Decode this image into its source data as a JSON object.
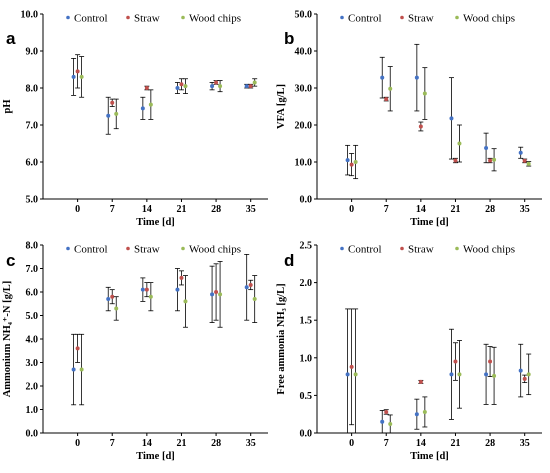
{
  "chart_data": [
    {
      "type": "scatter",
      "panel_label": "a",
      "xlabel": "Time [d]",
      "ylabel": "pH",
      "ylim": [
        5.0,
        10.0
      ],
      "yticks": [
        "5.0",
        "6.0",
        "7.0",
        "8.0",
        "9.0",
        "10.0"
      ],
      "x": [
        0,
        7,
        14,
        21,
        28,
        35
      ],
      "xticks": [
        "0",
        "7",
        "14",
        "21",
        "28",
        "35"
      ],
      "legend": "top",
      "series": [
        {
          "name": "Control",
          "color": "#4472c4",
          "values": [
            8.3,
            7.25,
            7.45,
            8.0,
            8.05,
            8.05
          ],
          "errors": [
            0.5,
            0.5,
            0.3,
            0.15,
            0.1,
            0.05
          ]
        },
        {
          "name": "Straw",
          "color": "#c0504d",
          "values": [
            8.45,
            7.6,
            8.0,
            8.1,
            8.15,
            8.05
          ],
          "errors": [
            0.45,
            0.1,
            0.05,
            0.15,
            0.05,
            0.05
          ]
        },
        {
          "name": "Wood chips",
          "color": "#9bbb59",
          "values": [
            8.3,
            7.3,
            7.55,
            8.05,
            8.05,
            8.15
          ],
          "errors": [
            0.55,
            0.4,
            0.4,
            0.2,
            0.15,
            0.1
          ]
        }
      ]
    },
    {
      "type": "scatter",
      "panel_label": "b",
      "xlabel": "Time [d]",
      "ylabel": "VFA [g/L]",
      "ylim": [
        0.0,
        50.0
      ],
      "yticks": [
        "0.0",
        "10.0",
        "20.0",
        "30.0",
        "40.0",
        "50.0"
      ],
      "x": [
        0,
        7,
        14,
        21,
        28,
        35
      ],
      "xticks": [
        "0",
        "7",
        "14",
        "21",
        "28",
        "35"
      ],
      "legend": "top",
      "series": [
        {
          "name": "Control",
          "color": "#4472c4",
          "values": [
            10.5,
            32.8,
            32.8,
            21.8,
            13.8,
            12.5
          ],
          "errors": [
            4.0,
            5.5,
            9.0,
            11.0,
            4.0,
            1.5
          ]
        },
        {
          "name": "Straw",
          "color": "#c0504d",
          "values": [
            9.3,
            27.0,
            19.6,
            10.4,
            10.4,
            10.3
          ],
          "errors": [
            3.0,
            0.5,
            1.2,
            0.6,
            0.6,
            0.5
          ]
        },
        {
          "name": "Wood chips",
          "color": "#9bbb59",
          "values": [
            10.0,
            29.8,
            28.5,
            15.0,
            10.6,
            9.5
          ],
          "errors": [
            4.5,
            6.0,
            7.0,
            5.0,
            3.0,
            0.6
          ]
        }
      ]
    },
    {
      "type": "scatter",
      "panel_label": "c",
      "xlabel": "Time [d]",
      "ylabel": "Ammonium NH₄⁺-N [g/L]",
      "ylim": [
        0.0,
        8.0
      ],
      "yticks": [
        "0.0",
        "1.0",
        "2.0",
        "3.0",
        "4.0",
        "5.0",
        "6.0",
        "7.0",
        "8.0"
      ],
      "x": [
        0,
        7,
        14,
        21,
        28,
        35
      ],
      "xticks": [
        "0",
        "7",
        "14",
        "21",
        "28",
        "35"
      ],
      "legend": "top",
      "series": [
        {
          "name": "Control",
          "color": "#4472c4",
          "values": [
            2.7,
            5.7,
            6.1,
            6.1,
            5.9,
            6.2
          ],
          "errors": [
            1.5,
            0.5,
            0.5,
            0.9,
            1.2,
            1.4
          ]
        },
        {
          "name": "Straw",
          "color": "#c0504d",
          "values": [
            3.6,
            5.8,
            6.1,
            6.6,
            6.0,
            6.3
          ],
          "errors": [
            0.6,
            0.3,
            0.3,
            0.3,
            1.2,
            0.2
          ]
        },
        {
          "name": "Wood chips",
          "color": "#9bbb59",
          "values": [
            2.7,
            5.3,
            5.8,
            5.6,
            5.9,
            5.7
          ],
          "errors": [
            1.5,
            0.5,
            0.6,
            1.1,
            1.4,
            1.0
          ]
        }
      ]
    },
    {
      "type": "scatter",
      "panel_label": "d",
      "xlabel": "Time [d]",
      "ylabel": "Free ammonia NH₃ [g/L]",
      "ylim": [
        0.0,
        2.5
      ],
      "yticks": [
        "0.0",
        "0.5",
        "1.0",
        "1.5",
        "2.0",
        "2.5"
      ],
      "x": [
        0,
        7,
        14,
        21,
        28,
        35
      ],
      "xticks": [
        "0",
        "7",
        "14",
        "21",
        "28",
        "35"
      ],
      "legend": "top",
      "series": [
        {
          "name": "Control",
          "color": "#4472c4",
          "values": [
            0.78,
            0.15,
            0.25,
            0.78,
            0.78,
            0.83
          ],
          "errors": [
            0.87,
            0.15,
            0.2,
            0.6,
            0.4,
            0.35
          ]
        },
        {
          "name": "Straw",
          "color": "#c0504d",
          "values": [
            0.88,
            0.28,
            0.68,
            0.95,
            0.95,
            0.72
          ],
          "errors": [
            0.77,
            0.03,
            0.02,
            0.25,
            0.2,
            0.05
          ]
        },
        {
          "name": "Wood chips",
          "color": "#9bbb59",
          "values": [
            0.78,
            0.12,
            0.28,
            0.78,
            0.76,
            0.78
          ],
          "errors": [
            0.87,
            0.12,
            0.2,
            0.45,
            0.38,
            0.27
          ]
        }
      ]
    }
  ]
}
